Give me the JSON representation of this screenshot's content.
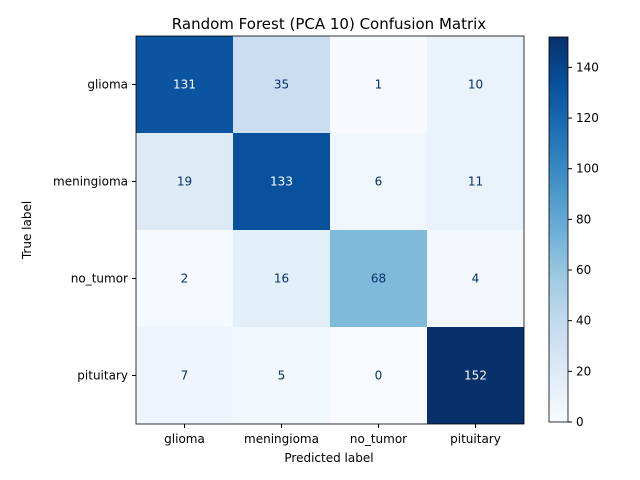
{
  "chart_data": {
    "type": "heatmap",
    "title": "Random Forest (PCA 10) Confusion Matrix",
    "xlabel": "Predicted label",
    "ylabel": "True label",
    "x_categories": [
      "glioma",
      "meningioma",
      "no_tumor",
      "pituitary"
    ],
    "y_categories": [
      "glioma",
      "meningioma",
      "no_tumor",
      "pituitary"
    ],
    "values": [
      [
        131,
        35,
        1,
        10
      ],
      [
        19,
        133,
        6,
        11
      ],
      [
        2,
        16,
        68,
        4
      ],
      [
        7,
        5,
        0,
        152
      ]
    ],
    "colormap": "Blues",
    "colorbar": {
      "min": 0,
      "max": 152,
      "ticks": [
        0,
        20,
        40,
        60,
        80,
        100,
        120,
        140
      ]
    },
    "grid": false,
    "colors": {
      "low": "#f7fbff",
      "high": "#08306b",
      "light_text": "#ffffff",
      "dark_text": "#08306b"
    }
  }
}
